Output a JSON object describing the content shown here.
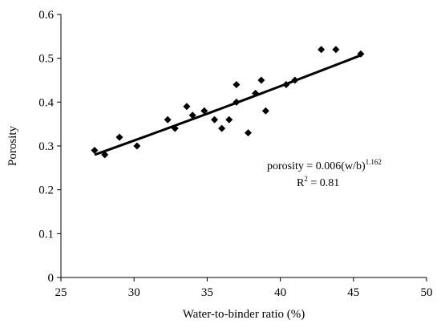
{
  "chart_data": {
    "type": "scatter",
    "title": "",
    "xlabel": "Water-to-binder ratio (%)",
    "ylabel": "Porosity",
    "xlim": [
      25,
      50
    ],
    "ylim": [
      0,
      0.6
    ],
    "xticks": [
      "25",
      "30",
      "35",
      "40",
      "45",
      "50"
    ],
    "yticks": [
      "0",
      "0.1",
      "0.2",
      "0.3",
      "0.4",
      "0.5",
      "0.6"
    ],
    "grid": false,
    "legend": "none",
    "marker": "diamond",
    "marker_color": "#000000",
    "points": [
      {
        "x": 27.3,
        "y": 0.29
      },
      {
        "x": 28.0,
        "y": 0.28
      },
      {
        "x": 29.0,
        "y": 0.32
      },
      {
        "x": 30.2,
        "y": 0.3
      },
      {
        "x": 32.3,
        "y": 0.36
      },
      {
        "x": 32.8,
        "y": 0.34
      },
      {
        "x": 33.6,
        "y": 0.39
      },
      {
        "x": 34.0,
        "y": 0.37
      },
      {
        "x": 34.8,
        "y": 0.38
      },
      {
        "x": 35.5,
        "y": 0.36
      },
      {
        "x": 36.0,
        "y": 0.34
      },
      {
        "x": 36.5,
        "y": 0.36
      },
      {
        "x": 37.0,
        "y": 0.4
      },
      {
        "x": 37.0,
        "y": 0.44
      },
      {
        "x": 37.8,
        "y": 0.33
      },
      {
        "x": 38.3,
        "y": 0.42
      },
      {
        "x": 38.7,
        "y": 0.45
      },
      {
        "x": 39.0,
        "y": 0.38
      },
      {
        "x": 40.4,
        "y": 0.44
      },
      {
        "x": 41.0,
        "y": 0.45
      },
      {
        "x": 42.8,
        "y": 0.52
      },
      {
        "x": 43.8,
        "y": 0.52
      },
      {
        "x": 45.5,
        "y": 0.51
      }
    ],
    "fit": {
      "type": "power",
      "coefficient": 0.006,
      "exponent": 1.162,
      "x_range": [
        27.3,
        45.5
      ]
    },
    "annotation": {
      "equation_prefix": "porosity = 0.006(w/b)",
      "equation_exponent": "1.162",
      "r2_prefix": "R",
      "r2_exponent": "2",
      "r2_value": " = 0.81"
    }
  }
}
